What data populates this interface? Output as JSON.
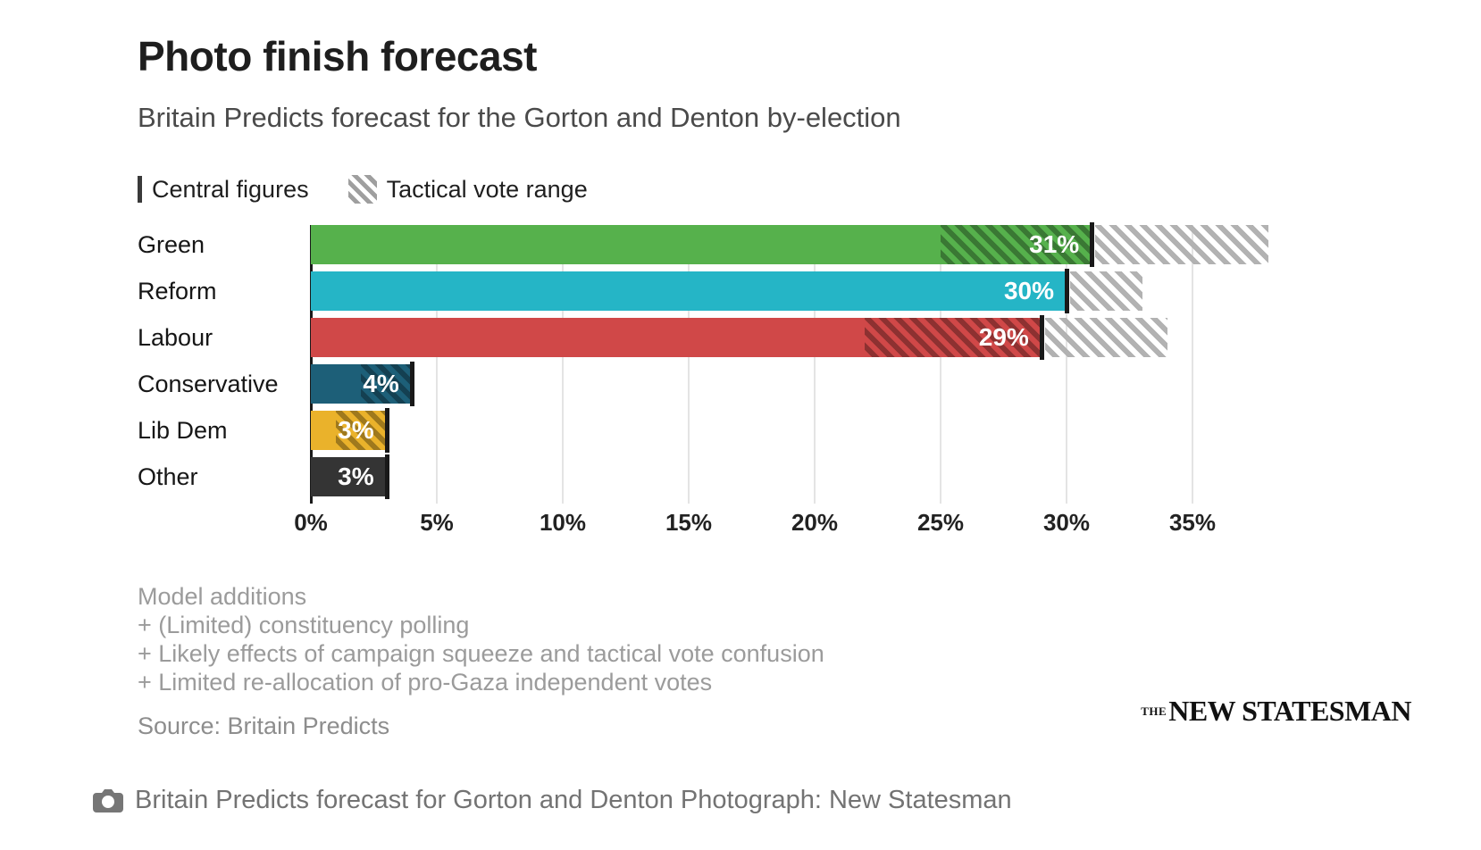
{
  "header": {
    "title": "Photo finish forecast",
    "subtitle": "Britain Predicts forecast for the Gorton and Denton by-election"
  },
  "legend": {
    "central_label": "Central figures",
    "range_label": "Tactical vote range"
  },
  "chart_data": {
    "type": "bar",
    "orientation": "horizontal",
    "title": "Photo finish forecast",
    "subtitle": "Britain Predicts forecast for the Gorton and Denton by-election",
    "categories": [
      "Green",
      "Reform",
      "Labour",
      "Conservative",
      "Lib Dem",
      "Other"
    ],
    "series": [
      {
        "name": "central_figure_pct",
        "values": [
          31,
          30,
          29,
          4,
          3,
          3
        ]
      },
      {
        "name": "tactical_range_low_pct",
        "values": [
          25,
          30,
          22,
          2,
          1,
          3
        ]
      },
      {
        "name": "tactical_range_high_pct",
        "values": [
          38,
          33,
          34,
          4,
          3,
          3
        ]
      }
    ],
    "value_labels": [
      "31%",
      "30%",
      "29%",
      "4%",
      "3%",
      "3%"
    ],
    "bar_colors": [
      "#56b14c",
      "#25b5c6",
      "#d04848",
      "#1d5f78",
      "#eab22b",
      "#343434"
    ],
    "x_ticks": [
      "0%",
      "5%",
      "10%",
      "15%",
      "20%",
      "25%",
      "30%",
      "35%"
    ],
    "x_tick_values": [
      0,
      5,
      10,
      15,
      20,
      25,
      30,
      35
    ],
    "xlim": [
      0,
      39.4
    ],
    "grid": true,
    "legend_position": "top-left",
    "range_hatch_note": "hatched = tactical vote range; dark line = central figure"
  },
  "footnotes": {
    "line1": "Model additions",
    "line2": "+ (Limited) constituency polling",
    "line3": "+ Likely effects of campaign squeeze and tactical vote confusion",
    "line4": "+ Limited re-allocation of pro-Gaza independent votes"
  },
  "source": "Source: Britain Predicts",
  "logo": {
    "the": "THE",
    "name": "NEW STATESMAN"
  },
  "caption": {
    "icon": "camera-icon",
    "text": "Britain Predicts forecast for Gorton and Denton Photograph: New Statesman"
  }
}
